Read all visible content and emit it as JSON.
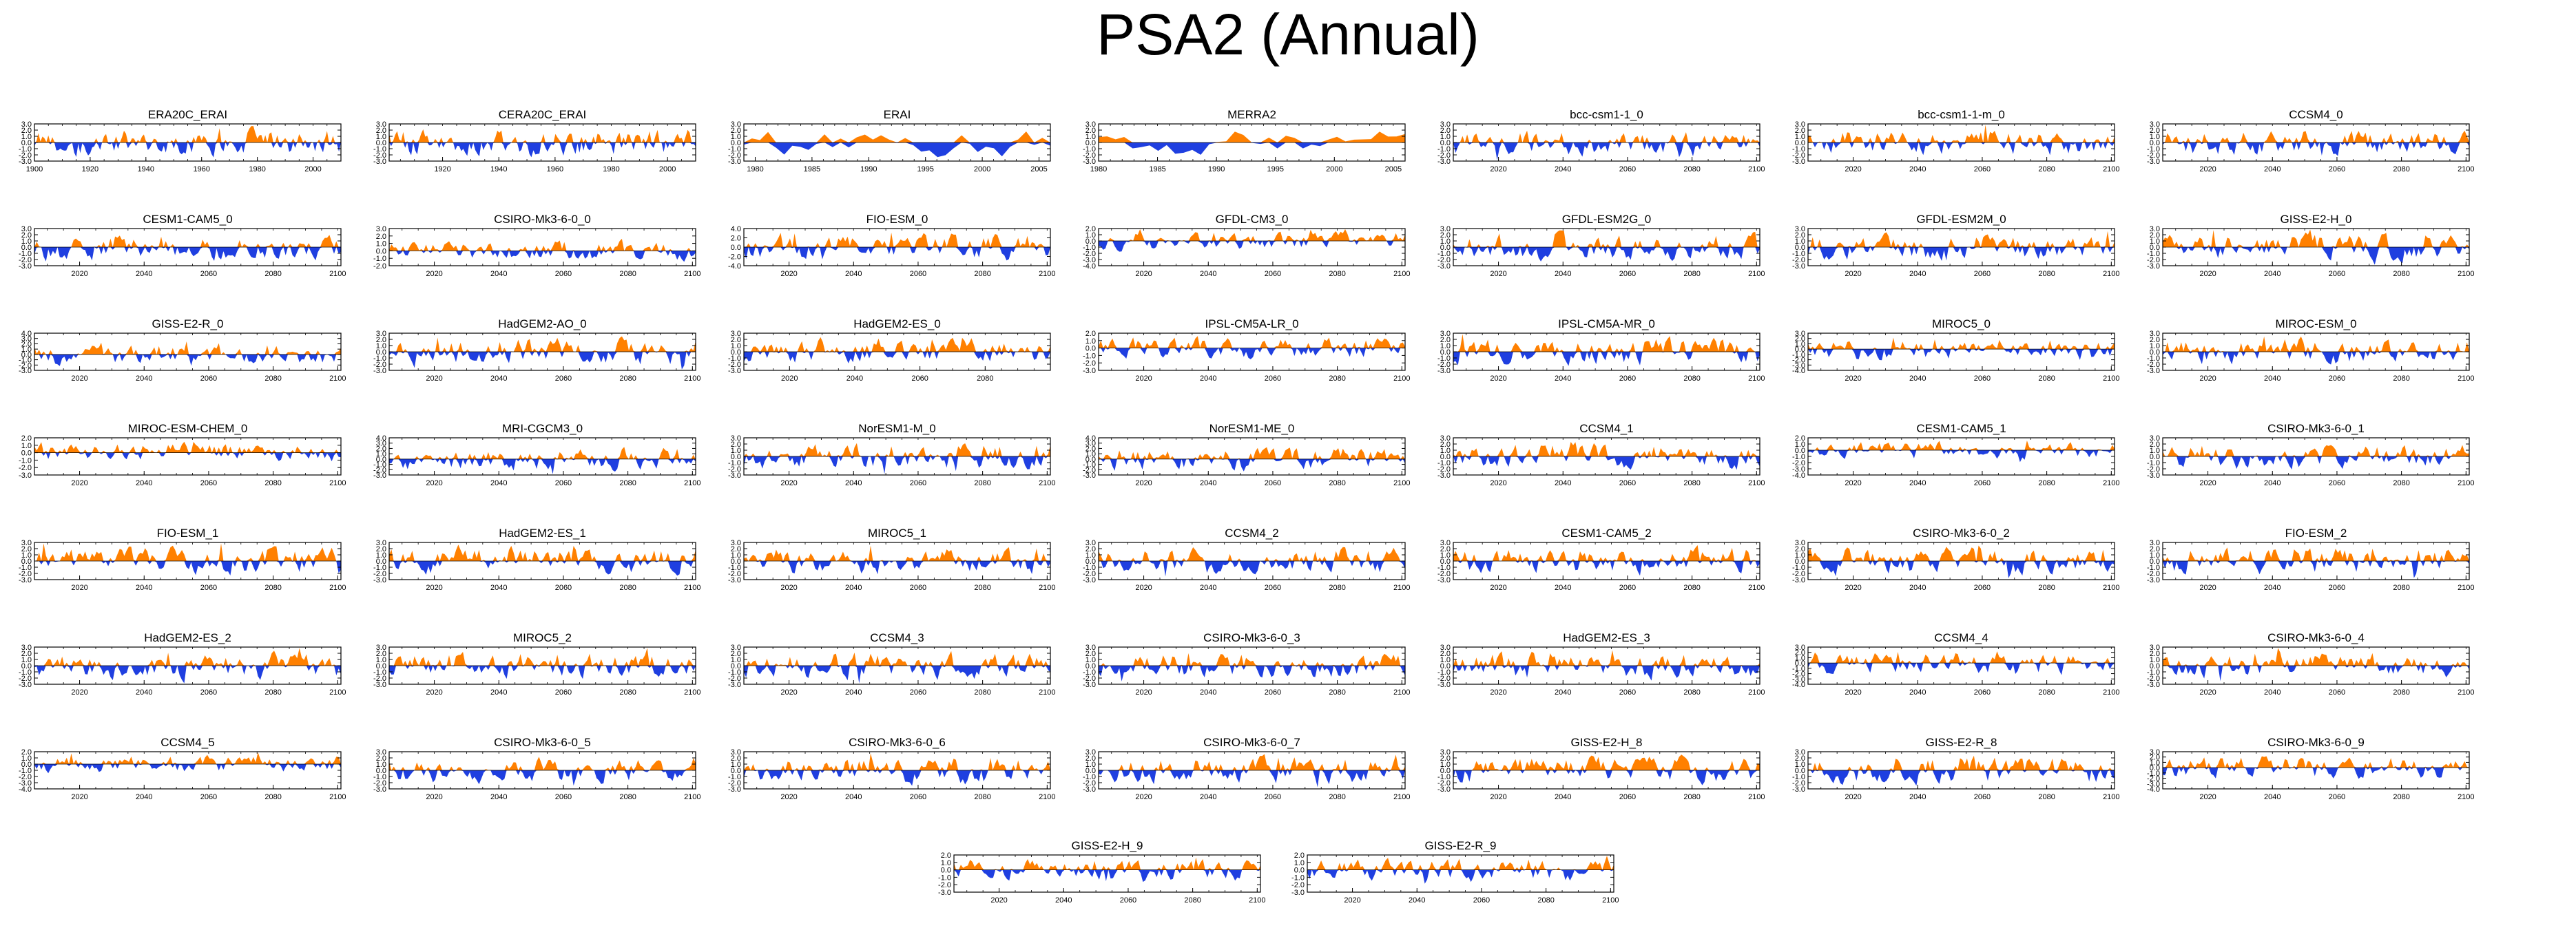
{
  "title": "PSA2 (Annual)",
  "colors": {
    "positive": "#ff8000",
    "negative": "#1f3fe0",
    "axis": "#000000"
  },
  "chart_data": [
    {
      "type": "area",
      "title": "ERA20C_ERAI",
      "x_range": [
        1900,
        2010
      ],
      "xticks": [
        1900,
        1920,
        1940,
        1960,
        1980,
        2000
      ],
      "yticks": [
        3.0,
        2.0,
        1.0,
        0.0,
        -1.0,
        -2.0,
        -3.0
      ],
      "ylim": [
        -3.0,
        3.0
      ]
    },
    {
      "type": "area",
      "title": "CERA20C_ERAI",
      "x_range": [
        1901,
        2010
      ],
      "xticks": [
        1920,
        1940,
        1960,
        1980,
        2000
      ],
      "yticks": [
        3.0,
        2.0,
        1.0,
        0.0,
        -1.0,
        -2.0,
        -3.0
      ],
      "ylim": [
        -3.0,
        3.0
      ]
    },
    {
      "type": "area",
      "title": "ERAI",
      "x_range": [
        1979,
        2006
      ],
      "xticks": [
        1980,
        1985,
        1990,
        1995,
        2000,
        2005
      ],
      "yticks": [
        3.0,
        2.0,
        1.0,
        0.0,
        -1.0,
        -2.0,
        -3.0
      ],
      "ylim": [
        -3.0,
        3.0
      ]
    },
    {
      "type": "area",
      "title": "MERRA2",
      "x_range": [
        1980,
        2006
      ],
      "xticks": [
        1980,
        1985,
        1990,
        1995,
        2000,
        2005
      ],
      "yticks": [
        3.0,
        2.0,
        1.0,
        0.0,
        -1.0,
        -2.0,
        -3.0
      ],
      "ylim": [
        -3.0,
        3.0
      ]
    },
    {
      "type": "area",
      "title": "bcc-csm1-1_0",
      "x_range": [
        2006,
        2101
      ],
      "xticks": [
        2020,
        2040,
        2060,
        2080,
        2100
      ],
      "yticks": [
        3.0,
        2.0,
        1.0,
        0.0,
        -1.0,
        -2.0,
        -3.0
      ],
      "ylim": [
        -3.0,
        3.0
      ]
    },
    {
      "type": "area",
      "title": "bcc-csm1-1-m_0",
      "x_range": [
        2006,
        2101
      ],
      "xticks": [
        2020,
        2040,
        2060,
        2080,
        2100
      ],
      "yticks": [
        3.0,
        2.0,
        1.0,
        0.0,
        -1.0,
        -2.0,
        -3.0
      ],
      "ylim": [
        -3.0,
        3.0
      ]
    },
    {
      "type": "area",
      "title": "CCSM4_0",
      "x_range": [
        2006,
        2101
      ],
      "xticks": [
        2020,
        2040,
        2060,
        2080,
        2100
      ],
      "yticks": [
        3.0,
        2.0,
        1.0,
        0.0,
        -1.0,
        -2.0,
        -3.0
      ],
      "ylim": [
        -3.0,
        3.0
      ]
    },
    {
      "type": "area",
      "title": "CESM1-CAM5_0",
      "x_range": [
        2006,
        2101
      ],
      "xticks": [
        2020,
        2040,
        2060,
        2080,
        2100
      ],
      "yticks": [
        3.0,
        2.0,
        1.0,
        0.0,
        -1.0,
        -2.0,
        -3.0
      ],
      "ylim": [
        -3.0,
        3.0
      ]
    },
    {
      "type": "area",
      "title": "CSIRO-Mk3-6-0_0",
      "x_range": [
        2006,
        2101
      ],
      "xticks": [
        2020,
        2040,
        2060,
        2080,
        2100
      ],
      "yticks": [
        3.0,
        2.0,
        1.0,
        0.0,
        -1.0,
        -2.0
      ],
      "ylim": [
        -2.0,
        3.0
      ]
    },
    {
      "type": "area",
      "title": "FIO-ESM_0",
      "x_range": [
        2006,
        2101
      ],
      "xticks": [
        2020,
        2040,
        2060,
        2080,
        2100
      ],
      "yticks": [
        4.0,
        2.0,
        0.0,
        -2.0,
        -4.0
      ],
      "ylim": [
        -4.0,
        4.0
      ]
    },
    {
      "type": "area",
      "title": "GFDL-CM3_0",
      "x_range": [
        2006,
        2101
      ],
      "xticks": [
        2020,
        2040,
        2060,
        2080,
        2100
      ],
      "yticks": [
        2.0,
        1.0,
        0.0,
        -1.0,
        -2.0,
        -3.0,
        -4.0
      ],
      "ylim": [
        -4.0,
        2.0
      ]
    },
    {
      "type": "area",
      "title": "GFDL-ESM2G_0",
      "x_range": [
        2006,
        2101
      ],
      "xticks": [
        2020,
        2040,
        2060,
        2080,
        2100
      ],
      "yticks": [
        3.0,
        2.0,
        1.0,
        0.0,
        -1.0,
        -2.0,
        -3.0
      ],
      "ylim": [
        -3.0,
        3.0
      ]
    },
    {
      "type": "area",
      "title": "GFDL-ESM2M_0",
      "x_range": [
        2006,
        2101
      ],
      "xticks": [
        2020,
        2040,
        2060,
        2080,
        2100
      ],
      "yticks": [
        3.0,
        2.0,
        1.0,
        0.0,
        -1.0,
        -2.0,
        -3.0
      ],
      "ylim": [
        -3.0,
        3.0
      ]
    },
    {
      "type": "area",
      "title": "GISS-E2-H_0",
      "x_range": [
        2006,
        2101
      ],
      "xticks": [
        2020,
        2040,
        2060,
        2080,
        2100
      ],
      "yticks": [
        3.0,
        2.0,
        1.0,
        0.0,
        -1.0,
        -2.0,
        -3.0
      ],
      "ylim": [
        -3.0,
        3.0
      ]
    },
    {
      "type": "area",
      "title": "GISS-E2-R_0",
      "x_range": [
        2006,
        2101
      ],
      "xticks": [
        2020,
        2040,
        2060,
        2080,
        2100
      ],
      "yticks": [
        4.0,
        3.0,
        2.0,
        1.0,
        0.0,
        -1.0,
        -2.0,
        -3.0
      ],
      "ylim": [
        -3.0,
        4.0
      ]
    },
    {
      "type": "area",
      "title": "HadGEM2-AO_0",
      "x_range": [
        2006,
        2101
      ],
      "xticks": [
        2020,
        2040,
        2060,
        2080,
        2100
      ],
      "yticks": [
        3.0,
        2.0,
        1.0,
        0.0,
        -1.0,
        -2.0,
        -3.0
      ],
      "ylim": [
        -3.0,
        3.0
      ]
    },
    {
      "type": "area",
      "title": "HadGEM2-ES_0",
      "x_range": [
        2006,
        2100
      ],
      "xticks": [
        2020,
        2040,
        2060,
        2080
      ],
      "yticks": [
        3.0,
        2.0,
        1.0,
        0.0,
        -1.0,
        -2.0,
        -3.0
      ],
      "ylim": [
        -3.0,
        3.0
      ]
    },
    {
      "type": "area",
      "title": "IPSL-CM5A-LR_0",
      "x_range": [
        2006,
        2101
      ],
      "xticks": [
        2020,
        2040,
        2060,
        2080,
        2100
      ],
      "yticks": [
        2.0,
        1.0,
        0.0,
        -1.0,
        -2.0,
        -3.0
      ],
      "ylim": [
        -3.0,
        2.0
      ]
    },
    {
      "type": "area",
      "title": "IPSL-CM5A-MR_0",
      "x_range": [
        2006,
        2101
      ],
      "xticks": [
        2020,
        2040,
        2060,
        2080,
        2100
      ],
      "yticks": [
        3.0,
        2.0,
        1.0,
        0.0,
        -1.0,
        -2.0,
        -3.0
      ],
      "ylim": [
        -3.0,
        3.0
      ]
    },
    {
      "type": "area",
      "title": "MIROC5_0",
      "x_range": [
        2006,
        2101
      ],
      "xticks": [
        2020,
        2040,
        2060,
        2080,
        2100
      ],
      "yticks": [
        3.0,
        2.0,
        1.0,
        0.0,
        -1.0,
        -2.0,
        -3.0,
        -4.0
      ],
      "ylim": [
        -4.0,
        3.0
      ]
    },
    {
      "type": "area",
      "title": "MIROC-ESM_0",
      "x_range": [
        2006,
        2101
      ],
      "xticks": [
        2020,
        2040,
        2060,
        2080,
        2100
      ],
      "yticks": [
        3.0,
        2.0,
        1.0,
        0.0,
        -1.0,
        -2.0,
        -3.0
      ],
      "ylim": [
        -3.0,
        3.0
      ]
    },
    {
      "type": "area",
      "title": "MIROC-ESM-CHEM_0",
      "x_range": [
        2006,
        2101
      ],
      "xticks": [
        2020,
        2040,
        2060,
        2080,
        2100
      ],
      "yticks": [
        2.0,
        1.0,
        0.0,
        -1.0,
        -2.0,
        -3.0
      ],
      "ylim": [
        -3.0,
        2.0
      ]
    },
    {
      "type": "area",
      "title": "MRI-CGCM3_0",
      "x_range": [
        2006,
        2101
      ],
      "xticks": [
        2020,
        2040,
        2060,
        2080,
        2100
      ],
      "yticks": [
        4.0,
        3.0,
        2.0,
        1.0,
        0.0,
        -1.0,
        -2.0,
        -3.0
      ],
      "ylim": [
        -3.0,
        4.0
      ]
    },
    {
      "type": "area",
      "title": "NorESM1-M_0",
      "x_range": [
        2006,
        2101
      ],
      "xticks": [
        2020,
        2040,
        2060,
        2080,
        2100
      ],
      "yticks": [
        3.0,
        2.0,
        1.0,
        0.0,
        -1.0,
        -2.0,
        -3.0
      ],
      "ylim": [
        -3.0,
        3.0
      ]
    },
    {
      "type": "area",
      "title": "NorESM1-ME_0",
      "x_range": [
        2006,
        2101
      ],
      "xticks": [
        2020,
        2040,
        2060,
        2080,
        2100
      ],
      "yticks": [
        4.0,
        3.0,
        2.0,
        1.0,
        0.0,
        -1.0,
        -2.0,
        -3.0
      ],
      "ylim": [
        -3.0,
        4.0
      ]
    },
    {
      "type": "area",
      "title": "CCSM4_1",
      "x_range": [
        2006,
        2101
      ],
      "xticks": [
        2020,
        2040,
        2060,
        2080,
        2100
      ],
      "yticks": [
        3.0,
        2.0,
        1.0,
        0.0,
        -1.0,
        -2.0,
        -3.0
      ],
      "ylim": [
        -3.0,
        3.0
      ]
    },
    {
      "type": "area",
      "title": "CESM1-CAM5_1",
      "x_range": [
        2006,
        2101
      ],
      "xticks": [
        2020,
        2040,
        2060,
        2080,
        2100
      ],
      "yticks": [
        2.0,
        1.0,
        0.0,
        -1.0,
        -2.0,
        -3.0,
        -4.0
      ],
      "ylim": [
        -4.0,
        2.0
      ]
    },
    {
      "type": "area",
      "title": "CSIRO-Mk3-6-0_1",
      "x_range": [
        2006,
        2101
      ],
      "xticks": [
        2020,
        2040,
        2060,
        2080,
        2100
      ],
      "yticks": [
        3.0,
        2.0,
        1.0,
        0.0,
        -1.0,
        -2.0,
        -3.0
      ],
      "ylim": [
        -3.0,
        3.0
      ]
    },
    {
      "type": "area",
      "title": "FIO-ESM_1",
      "x_range": [
        2006,
        2101
      ],
      "xticks": [
        2020,
        2040,
        2060,
        2080,
        2100
      ],
      "yticks": [
        3.0,
        2.0,
        1.0,
        0.0,
        -1.0,
        -2.0,
        -3.0
      ],
      "ylim": [
        -3.0,
        3.0
      ]
    },
    {
      "type": "area",
      "title": "HadGEM2-ES_1",
      "x_range": [
        2006,
        2101
      ],
      "xticks": [
        2020,
        2040,
        2060,
        2080,
        2100
      ],
      "yticks": [
        3.0,
        2.0,
        1.0,
        0.0,
        -1.0,
        -2.0,
        -3.0
      ],
      "ylim": [
        -3.0,
        3.0
      ]
    },
    {
      "type": "area",
      "title": "MIROC5_1",
      "x_range": [
        2006,
        2101
      ],
      "xticks": [
        2020,
        2040,
        2060,
        2080,
        2100
      ],
      "yticks": [
        3.0,
        2.0,
        1.0,
        0.0,
        -1.0,
        -2.0,
        -3.0
      ],
      "ylim": [
        -3.0,
        3.0
      ]
    },
    {
      "type": "area",
      "title": "CCSM4_2",
      "x_range": [
        2006,
        2101
      ],
      "xticks": [
        2020,
        2040,
        2060,
        2080,
        2100
      ],
      "yticks": [
        3.0,
        2.0,
        1.0,
        0.0,
        -1.0,
        -2.0,
        -3.0
      ],
      "ylim": [
        -3.0,
        3.0
      ]
    },
    {
      "type": "area",
      "title": "CESM1-CAM5_2",
      "x_range": [
        2006,
        2101
      ],
      "xticks": [
        2020,
        2040,
        2060,
        2080,
        2100
      ],
      "yticks": [
        3.0,
        2.0,
        1.0,
        0.0,
        -1.0,
        -2.0,
        -3.0
      ],
      "ylim": [
        -3.0,
        3.0
      ]
    },
    {
      "type": "area",
      "title": "CSIRO-Mk3-6-0_2",
      "x_range": [
        2006,
        2101
      ],
      "xticks": [
        2020,
        2040,
        2060,
        2080,
        2100
      ],
      "yticks": [
        3.0,
        2.0,
        1.0,
        0.0,
        -1.0,
        -2.0,
        -3.0
      ],
      "ylim": [
        -3.0,
        3.0
      ]
    },
    {
      "type": "area",
      "title": "FIO-ESM_2",
      "x_range": [
        2006,
        2101
      ],
      "xticks": [
        2020,
        2040,
        2060,
        2080,
        2100
      ],
      "yticks": [
        3.0,
        2.0,
        1.0,
        0.0,
        -1.0,
        -2.0,
        -3.0
      ],
      "ylim": [
        -3.0,
        3.0
      ]
    },
    {
      "type": "area",
      "title": "HadGEM2-ES_2",
      "x_range": [
        2006,
        2101
      ],
      "xticks": [
        2020,
        2040,
        2060,
        2080,
        2100
      ],
      "yticks": [
        3.0,
        2.0,
        1.0,
        0.0,
        -1.0,
        -2.0,
        -3.0
      ],
      "ylim": [
        -3.0,
        3.0
      ]
    },
    {
      "type": "area",
      "title": "MIROC5_2",
      "x_range": [
        2006,
        2101
      ],
      "xticks": [
        2020,
        2040,
        2060,
        2080,
        2100
      ],
      "yticks": [
        3.0,
        2.0,
        1.0,
        0.0,
        -1.0,
        -2.0,
        -3.0
      ],
      "ylim": [
        -3.0,
        3.0
      ]
    },
    {
      "type": "area",
      "title": "CCSM4_3",
      "x_range": [
        2006,
        2101
      ],
      "xticks": [
        2020,
        2040,
        2060,
        2080,
        2100
      ],
      "yticks": [
        3.0,
        2.0,
        1.0,
        0.0,
        -1.0,
        -2.0,
        -3.0
      ],
      "ylim": [
        -3.0,
        3.0
      ]
    },
    {
      "type": "area",
      "title": "CSIRO-Mk3-6-0_3",
      "x_range": [
        2006,
        2101
      ],
      "xticks": [
        2020,
        2040,
        2060,
        2080,
        2100
      ],
      "yticks": [
        3.0,
        2.0,
        1.0,
        0.0,
        -1.0,
        -2.0,
        -3.0
      ],
      "ylim": [
        -3.0,
        3.0
      ]
    },
    {
      "type": "area",
      "title": "HadGEM2-ES_3",
      "x_range": [
        2006,
        2101
      ],
      "xticks": [
        2020,
        2040,
        2060,
        2080,
        2100
      ],
      "yticks": [
        3.0,
        2.0,
        1.0,
        0.0,
        -1.0,
        -2.0,
        -3.0
      ],
      "ylim": [
        -3.0,
        3.0
      ]
    },
    {
      "type": "area",
      "title": "CCSM4_4",
      "x_range": [
        2006,
        2101
      ],
      "xticks": [
        2020,
        2040,
        2060,
        2080,
        2100
      ],
      "yticks": [
        3.0,
        2.0,
        1.0,
        0.0,
        -1.0,
        -2.0,
        -3.0,
        -4.0
      ],
      "ylim": [
        -4.0,
        3.0
      ]
    },
    {
      "type": "area",
      "title": "CSIRO-Mk3-6-0_4",
      "x_range": [
        2006,
        2101
      ],
      "xticks": [
        2020,
        2040,
        2060,
        2080,
        2100
      ],
      "yticks": [
        3.0,
        2.0,
        1.0,
        0.0,
        -1.0,
        -2.0,
        -3.0
      ],
      "ylim": [
        -3.0,
        3.0
      ]
    },
    {
      "type": "area",
      "title": "CCSM4_5",
      "x_range": [
        2006,
        2101
      ],
      "xticks": [
        2020,
        2040,
        2060,
        2080,
        2100
      ],
      "yticks": [
        2.0,
        1.0,
        0.0,
        -1.0,
        -2.0,
        -3.0,
        -4.0
      ],
      "ylim": [
        -4.0,
        2.0
      ]
    },
    {
      "type": "area",
      "title": "CSIRO-Mk3-6-0_5",
      "x_range": [
        2006,
        2101
      ],
      "xticks": [
        2020,
        2040,
        2060,
        2080,
        2100
      ],
      "yticks": [
        3.0,
        2.0,
        1.0,
        0.0,
        -1.0,
        -2.0,
        -3.0
      ],
      "ylim": [
        -3.0,
        3.0
      ]
    },
    {
      "type": "area",
      "title": "CSIRO-Mk3-6-0_6",
      "x_range": [
        2006,
        2101
      ],
      "xticks": [
        2020,
        2040,
        2060,
        2080,
        2100
      ],
      "yticks": [
        3.0,
        2.0,
        1.0,
        0.0,
        -1.0,
        -2.0,
        -3.0
      ],
      "ylim": [
        -3.0,
        3.0
      ]
    },
    {
      "type": "area",
      "title": "CSIRO-Mk3-6-0_7",
      "x_range": [
        2006,
        2101
      ],
      "xticks": [
        2020,
        2040,
        2060,
        2080,
        2100
      ],
      "yticks": [
        3.0,
        2.0,
        1.0,
        0.0,
        -1.0,
        -2.0,
        -3.0
      ],
      "ylim": [
        -3.0,
        3.0
      ]
    },
    {
      "type": "area",
      "title": "GISS-E2-H_8",
      "x_range": [
        2006,
        2101
      ],
      "xticks": [
        2020,
        2040,
        2060,
        2080,
        2100
      ],
      "yticks": [
        3.0,
        2.0,
        1.0,
        0.0,
        -1.0,
        -2.0,
        -3.0
      ],
      "ylim": [
        -3.0,
        3.0
      ]
    },
    {
      "type": "area",
      "title": "GISS-E2-R_8",
      "x_range": [
        2006,
        2101
      ],
      "xticks": [
        2020,
        2040,
        2060,
        2080,
        2100
      ],
      "yticks": [
        3.0,
        2.0,
        1.0,
        0.0,
        -1.0,
        -2.0,
        -3.0
      ],
      "ylim": [
        -3.0,
        3.0
      ]
    },
    {
      "type": "area",
      "title": "CSIRO-Mk3-6-0_9",
      "x_range": [
        2006,
        2101
      ],
      "xticks": [
        2020,
        2040,
        2060,
        2080,
        2100
      ],
      "yticks": [
        3.0,
        2.0,
        1.0,
        0.0,
        -1.0,
        -2.0,
        -3.0,
        -4.0
      ],
      "ylim": [
        -4.0,
        3.0
      ]
    },
    {
      "type": "area",
      "title": "GISS-E2-H_9",
      "x_range": [
        2006,
        2101
      ],
      "xticks": [
        2020,
        2040,
        2060,
        2080,
        2100
      ],
      "yticks": [
        2.0,
        1.0,
        0.0,
        -1.0,
        -2.0,
        -3.0
      ],
      "ylim": [
        -3.0,
        2.0
      ]
    },
    {
      "type": "area",
      "title": "GISS-E2-R_9",
      "x_range": [
        2006,
        2101
      ],
      "xticks": [
        2020,
        2040,
        2060,
        2080,
        2100
      ],
      "yticks": [
        2.0,
        1.0,
        0.0,
        -1.0,
        -2.0,
        -3.0
      ],
      "ylim": [
        -3.0,
        2.0
      ]
    }
  ]
}
